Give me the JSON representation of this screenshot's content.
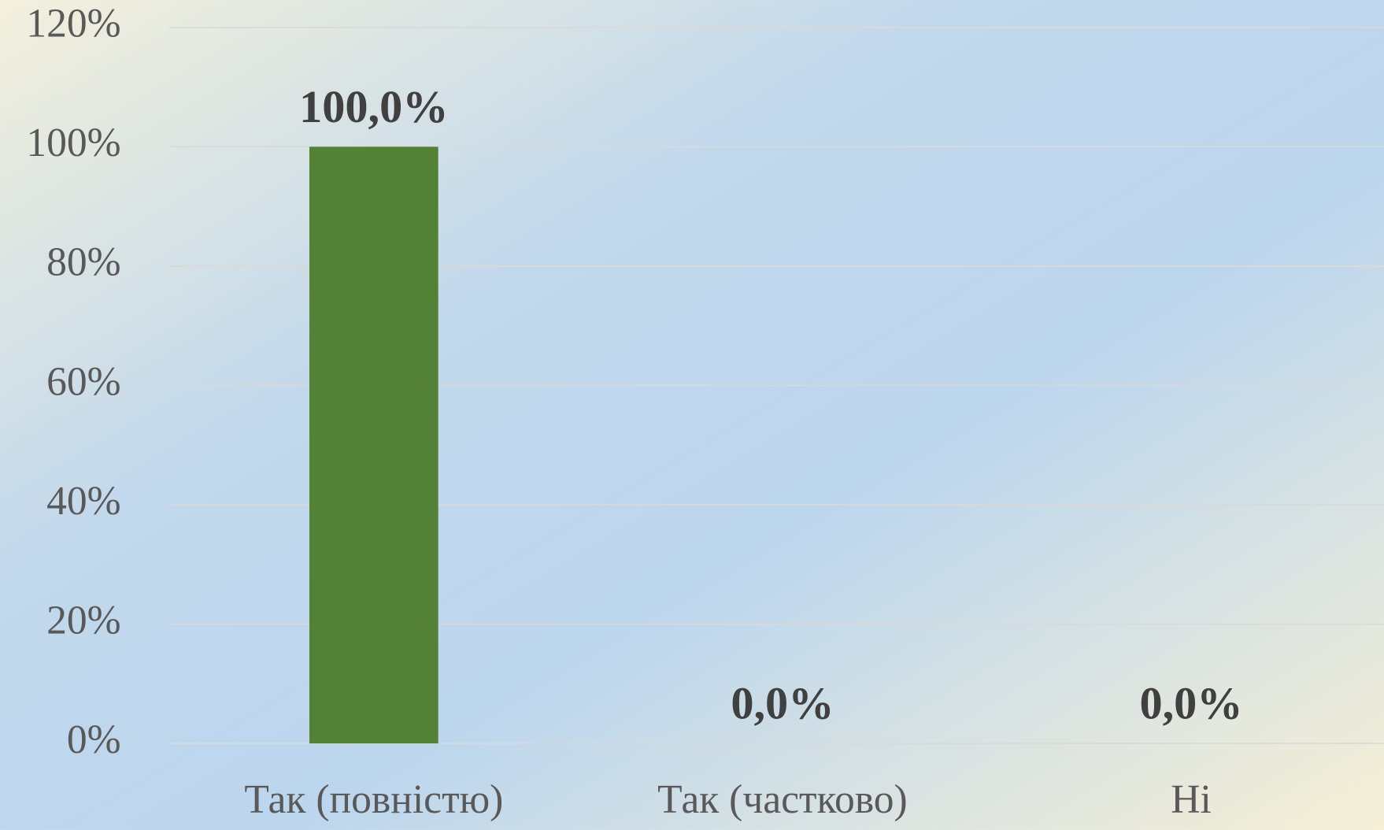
{
  "chart_data": {
    "type": "bar",
    "categories": [
      "Так (повністю)",
      "Так (частково)",
      "Ні"
    ],
    "values": [
      100,
      0,
      0
    ],
    "value_labels": [
      "100,0%",
      "0,0%",
      "0,0%"
    ],
    "color": "#538135",
    "ylim": [
      0,
      120
    ],
    "yticks": [
      {
        "value": 0,
        "label": "0%"
      },
      {
        "value": 20,
        "label": "20%"
      },
      {
        "value": 40,
        "label": "40%"
      },
      {
        "value": 60,
        "label": "60%"
      },
      {
        "value": 80,
        "label": "80%"
      },
      {
        "value": 100,
        "label": "100%"
      },
      {
        "value": 120,
        "label": "120%"
      }
    ],
    "grid": true
  }
}
